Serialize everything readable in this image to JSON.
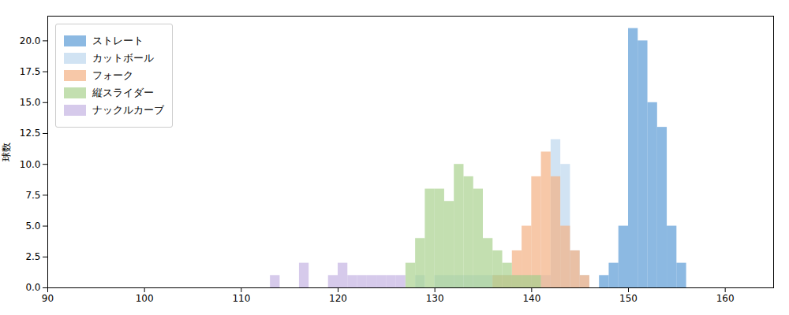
{
  "chart_data": {
    "type": "histogram",
    "ylabel": "球数",
    "xlim": [
      90,
      165
    ],
    "ylim": [
      0,
      22
    ],
    "xticks": [
      90,
      100,
      110,
      120,
      130,
      140,
      150,
      160
    ],
    "yticks": [
      {
        "value": 0,
        "label": "0.0"
      },
      2.5,
      {
        "value": 5,
        "label": "5.0"
      },
      7.5,
      {
        "value": 10,
        "label": "10.0"
      },
      12.5,
      {
        "value": 15,
        "label": "15.0"
      },
      17.5,
      {
        "value": 20,
        "label": "20.0"
      }
    ],
    "bins": [
      90,
      91,
      92,
      93,
      94,
      95,
      96,
      97,
      98,
      99,
      100,
      101,
      102,
      103,
      104,
      105,
      106,
      107,
      108,
      109,
      110,
      111,
      112,
      113,
      114,
      115,
      116,
      117,
      118,
      119,
      120,
      121,
      122,
      123,
      124,
      125,
      126,
      127,
      128,
      129,
      130,
      131,
      132,
      133,
      134,
      135,
      136,
      137,
      138,
      139,
      140,
      141,
      142,
      143,
      144,
      145,
      146,
      147,
      148,
      149,
      150,
      151,
      152,
      153,
      154,
      155,
      156,
      157,
      158,
      159,
      160,
      161,
      162,
      163,
      164,
      165,
      166
    ],
    "series": [
      {
        "name": "ストレート",
        "color": "#5B9BD5",
        "values": [
          0,
          0,
          0,
          0,
          0,
          0,
          0,
          0,
          0,
          0,
          0,
          0,
          0,
          0,
          0,
          0,
          0,
          0,
          0,
          0,
          0,
          0,
          0,
          0,
          0,
          0,
          0,
          0,
          0,
          0,
          0,
          0,
          0,
          0,
          0,
          0,
          0,
          0,
          0,
          0,
          0,
          0,
          0,
          0,
          0,
          0,
          0,
          0,
          0,
          0,
          0,
          0,
          0,
          0,
          0,
          0,
          0,
          1,
          2,
          5,
          21,
          20,
          15,
          13,
          5,
          2,
          0,
          0,
          0,
          0,
          0,
          0,
          0,
          0,
          0,
          0
        ]
      },
      {
        "name": "カットボール",
        "color": "#BDD7EE",
        "values": [
          0,
          0,
          0,
          0,
          0,
          0,
          0,
          0,
          0,
          0,
          0,
          0,
          0,
          0,
          0,
          0,
          0,
          0,
          0,
          0,
          0,
          0,
          0,
          0,
          0,
          0,
          0,
          0,
          0,
          0,
          0,
          0,
          0,
          0,
          0,
          0,
          0,
          0,
          1,
          0,
          1,
          1,
          1,
          1,
          1,
          1,
          1,
          1,
          1,
          1,
          1,
          1,
          12,
          10,
          3,
          1,
          0,
          0,
          0,
          0,
          0,
          0,
          0,
          0,
          0,
          0,
          0,
          0,
          0,
          0,
          0,
          0,
          0,
          0,
          0,
          0
        ]
      },
      {
        "name": "フォーク",
        "color": "#F4B183",
        "values": [
          0,
          0,
          0,
          0,
          0,
          0,
          0,
          0,
          0,
          0,
          0,
          0,
          0,
          0,
          0,
          0,
          0,
          0,
          0,
          0,
          0,
          0,
          0,
          0,
          0,
          0,
          0,
          0,
          0,
          0,
          0,
          0,
          0,
          0,
          0,
          0,
          0,
          0,
          0,
          0,
          0,
          0,
          0,
          0,
          0,
          0,
          1,
          1,
          3,
          5,
          9,
          11,
          9,
          5,
          3,
          1,
          0,
          0,
          0,
          0,
          0,
          0,
          0,
          0,
          0,
          0,
          0,
          0,
          0,
          0,
          0,
          0,
          0,
          0,
          0,
          0
        ]
      },
      {
        "name": "縦スライダー",
        "color": "#A9D18E",
        "values": [
          0,
          0,
          0,
          0,
          0,
          0,
          0,
          0,
          0,
          0,
          0,
          0,
          0,
          0,
          0,
          0,
          0,
          0,
          0,
          0,
          0,
          0,
          0,
          0,
          0,
          0,
          0,
          0,
          0,
          0,
          0,
          0,
          0,
          0,
          0,
          0,
          0,
          2,
          4,
          8,
          8,
          7,
          10,
          9,
          8,
          4,
          3,
          2,
          1,
          1,
          1,
          0,
          0,
          0,
          0,
          0,
          0,
          0,
          0,
          0,
          0,
          0,
          0,
          0,
          0,
          0,
          0,
          0,
          0,
          0,
          0,
          0,
          0,
          0,
          0,
          0
        ]
      },
      {
        "name": "ナックルカーブ",
        "color": "#C5B4E3",
        "values": [
          0,
          0,
          0,
          0,
          0,
          0,
          0,
          0,
          0,
          0,
          0,
          0,
          0,
          0,
          0,
          0,
          0,
          0,
          0,
          0,
          0,
          0,
          0,
          1,
          0,
          0,
          2,
          0,
          0,
          1,
          2,
          1,
          1,
          1,
          1,
          1,
          1,
          0,
          0,
          0,
          0,
          0,
          0,
          0,
          0,
          0,
          0,
          0,
          0,
          0,
          0,
          0,
          0,
          0,
          0,
          0,
          0,
          0,
          0,
          0,
          0,
          0,
          0,
          0,
          0,
          0,
          0,
          0,
          0,
          0,
          0,
          0,
          0,
          0,
          0,
          0
        ]
      }
    ],
    "legend": "upper left",
    "grid": false
  }
}
